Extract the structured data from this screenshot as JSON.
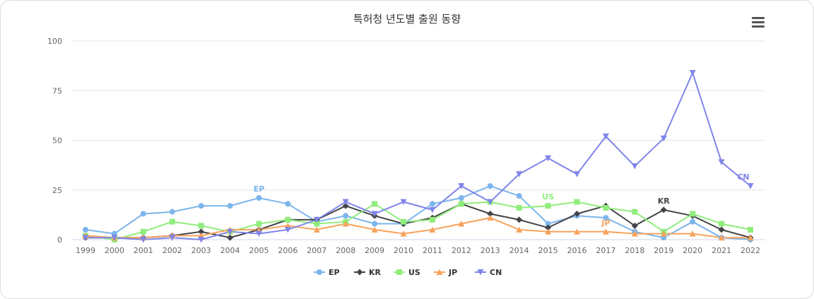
{
  "chart_data": {
    "type": "line",
    "title": "특허청 년도별 출원 동향",
    "xlabel": "",
    "ylabel": "",
    "ylim": [
      0,
      100
    ],
    "yticks": [
      0,
      25,
      50,
      75,
      100
    ],
    "grid": true,
    "legend_position": "bottom",
    "categories": [
      "1999",
      "2000",
      "2001",
      "2002",
      "2003",
      "2004",
      "2005",
      "2006",
      "2007",
      "2008",
      "2009",
      "2010",
      "2011",
      "2012",
      "2013",
      "2014",
      "2015",
      "2016",
      "2017",
      "2018",
      "2019",
      "2020",
      "2021",
      "2022"
    ],
    "series": [
      {
        "name": "EP",
        "color": "#7cb5ec",
        "marker": "circle",
        "values": [
          5,
          3,
          13,
          14,
          17,
          17,
          21,
          18,
          9,
          12,
          8,
          8,
          18,
          21,
          27,
          22,
          8,
          12,
          11,
          4,
          1,
          9,
          1,
          0
        ]
      },
      {
        "name": "KR",
        "color": "#434348",
        "marker": "diamond",
        "values": [
          1,
          1,
          1,
          2,
          4,
          1,
          5,
          10,
          10,
          17,
          12,
          8,
          11,
          18,
          13,
          10,
          6,
          13,
          17,
          7,
          15,
          12,
          5,
          1
        ]
      },
      {
        "name": "US",
        "color": "#90ed7d",
        "marker": "square",
        "values": [
          2,
          0,
          4,
          9,
          7,
          4,
          8,
          10,
          8,
          9,
          18,
          9,
          10,
          18,
          19,
          16,
          17,
          19,
          16,
          14,
          4,
          13,
          8,
          5
        ]
      },
      {
        "name": "JP",
        "color": "#f7a35c",
        "marker": "triangle",
        "values": [
          2,
          1,
          1,
          2,
          2,
          5,
          5,
          7,
          5,
          8,
          5,
          3,
          5,
          8,
          11,
          5,
          4,
          4,
          4,
          3,
          3,
          3,
          1,
          1
        ]
      },
      {
        "name": "CN",
        "color": "#8085e9",
        "marker": "triangle-down",
        "values": [
          1,
          1,
          0,
          1,
          0,
          4,
          3,
          5,
          10,
          19,
          13,
          19,
          15,
          27,
          19,
          33,
          41,
          33,
          52,
          37,
          51,
          84,
          39,
          27
        ]
      }
    ],
    "annotations": [
      {
        "text": "EP",
        "series": "EP",
        "category": "2005"
      },
      {
        "text": "US",
        "series": "US",
        "category": "2015"
      },
      {
        "text": "JP",
        "series": "JP",
        "category": "2017"
      },
      {
        "text": "KR",
        "series": "KR",
        "category": "2019"
      },
      {
        "text": "CN",
        "series": "CN",
        "category": "2022"
      }
    ]
  },
  "toolbar": {
    "menu_icon": "hamburger-menu-icon"
  }
}
